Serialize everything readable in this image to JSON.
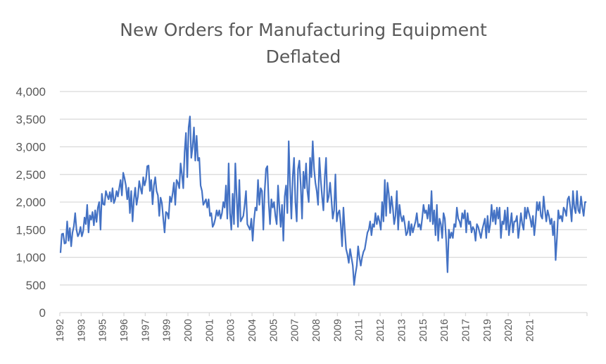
{
  "chart_data": {
    "type": "line",
    "title": "New Orders for Manufacturing Equipment",
    "subtitle": "Deflated",
    "xlabel": "",
    "ylabel": "",
    "ylim": [
      0,
      4000
    ],
    "yticks": [
      0,
      500,
      1000,
      1500,
      2000,
      2500,
      3000,
      3500,
      4000
    ],
    "ytick_labels": [
      "0",
      "500",
      "1,000",
      "1,500",
      "2,000",
      "2,500",
      "3,000",
      "3,500",
      "4,000"
    ],
    "xtick_labels": [
      "1992",
      "1993",
      "1995",
      "1996",
      "1997",
      "1999",
      "2000",
      "2001",
      "2003",
      "2004",
      "2005",
      "2007",
      "2008",
      "2009",
      "2011",
      "2012",
      "2013",
      "2015",
      "2016",
      "2017",
      "2019",
      "2020",
      "2021"
    ],
    "grid": true,
    "legend": "none",
    "series": [
      {
        "name": "New Orders for Manufacturing Equipment (Deflated)",
        "color": "#4472c4",
        "x_start": "1992-01",
        "frequency": "monthly",
        "values": [
          1080,
          1420,
          1430,
          1250,
          1260,
          1650,
          1300,
          1530,
          1200,
          1450,
          1560,
          1800,
          1500,
          1380,
          1430,
          1550,
          1380,
          1470,
          1720,
          1600,
          1950,
          1450,
          1760,
          1680,
          1820,
          1580,
          1850,
          1640,
          1900,
          2000,
          1500,
          2150,
          1960,
          1950,
          2200,
          2120,
          2050,
          2180,
          2010,
          2250,
          1980,
          2050,
          2200,
          2100,
          2250,
          2400,
          2120,
          2530,
          2430,
          2300,
          2050,
          2260,
          1800,
          2200,
          1650,
          2050,
          2260,
          1950,
          2100,
          2380,
          2250,
          2150,
          2450,
          2300,
          2400,
          2650,
          2660,
          2200,
          2400,
          1960,
          2300,
          2450,
          2200,
          2120,
          1750,
          2080,
          1980,
          1700,
          1450,
          1820,
          1800,
          1700,
          2100,
          2000,
          2150,
          2350,
          1950,
          2400,
          2350,
          2250,
          2700,
          2500,
          2250,
          2900,
          3250,
          2450,
          3350,
          3550,
          2800,
          3000,
          3350,
          2750,
          3200,
          2750,
          2800,
          2300,
          2200,
          1950,
          2000,
          2050,
          1900,
          2050,
          1750,
          1800,
          1550,
          1600,
          1700,
          1850,
          1750,
          1850,
          1700,
          1800,
          2000,
          1900,
          2300,
          1700,
          2700,
          1800,
          1500,
          2150,
          1600,
          2700,
          2100,
          1550,
          2400,
          1650,
          1700,
          1750,
          1950,
          2200,
          1600,
          1550,
          1500,
          1700,
          1300,
          1680,
          1900,
          1850,
          2400,
          1950,
          2250,
          2200,
          1500,
          2200,
          2600,
          2650,
          2000,
          1600,
          2050,
          1900,
          2000,
          1750,
          1600,
          2300,
          1900,
          1550,
          1950,
          1300,
          2100,
          2300,
          1800,
          3100,
          2300,
          1700,
          2450,
          2800,
          2000,
          1650,
          2600,
          2750,
          2300,
          1700,
          2550,
          2250,
          2700,
          2200,
          2000,
          2800,
          2450,
          3100,
          2600,
          2350,
          2200,
          1950,
          2800,
          2400,
          2100,
          1850,
          2450,
          2800,
          2000,
          2100,
          2350,
          2050,
          1700,
          1850,
          2500,
          1650,
          1800,
          1850,
          1600,
          1200,
          1900,
          1500,
          1150,
          1050,
          900,
          1150,
          1000,
          850,
          500,
          700,
          850,
          1200,
          1000,
          850,
          1000,
          1100,
          1150,
          1300,
          1450,
          1500,
          1650,
          1400,
          1600,
          1550,
          1800,
          1600,
          1750,
          1650,
          1500,
          2000,
          1650,
          2400,
          1750,
          2350,
          2150,
          1800,
          2100,
          1900,
          1600,
          1750,
          2200,
          1500,
          1950,
          1750,
          1650,
          1750,
          1600,
          1400,
          1450,
          1650,
          1400,
          1600,
          1450,
          1550,
          1650,
          1800,
          1550,
          1600,
          1500,
          1700,
          1950,
          1800,
          1850,
          1700,
          1950,
          1650,
          2200,
          1600,
          1850,
          1400,
          1950,
          1300,
          1700,
          1600,
          1350,
          1800,
          1700,
          1300,
          730,
          1500,
          1350,
          1450,
          1350,
          1600,
          1550,
          1900,
          1700,
          1650,
          1550,
          1800,
          1700,
          1850,
          1450,
          1800,
          1600,
          1650,
          1450,
          1550,
          1500,
          1300,
          1600,
          1550,
          1450,
          1350,
          1500,
          1600,
          1700,
          1350,
          1750,
          1450,
          1600,
          1950,
          1650,
          1850,
          1600,
          1900,
          1700,
          1900,
          1350,
          1650,
          1600,
          1850,
          1500,
          1900,
          1400,
          1600,
          1800,
          1450,
          1650,
          1650,
          1750,
          1350,
          1550,
          1800,
          1600,
          1500,
          1900,
          1700,
          1900,
          1800,
          1700,
          1550,
          1750,
          1400,
          1650,
          2000,
          1850,
          2000,
          1750,
          1700,
          2100,
          1850,
          1650,
          1850,
          1750,
          1600,
          1700,
          1400,
          1650,
          950,
          1350,
          1850,
          1700,
          1750,
          1650,
          1900,
          1850,
          1750,
          2050,
          2100,
          1900,
          1650,
          2200,
          1900,
          1800,
          2200,
          1850,
          1800,
          2100,
          1900,
          1750,
          2000,
          2000
        ]
      }
    ]
  }
}
